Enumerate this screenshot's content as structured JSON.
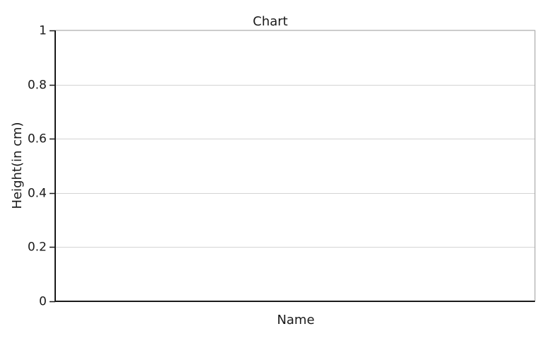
{
  "chart_data": {
    "type": "bar",
    "title": "Chart",
    "xlabel": "Name",
    "ylabel": "Height(in cm)",
    "categories": [],
    "series": [],
    "ylim": [
      0,
      1
    ],
    "yticks": [
      {
        "value": 0,
        "label": "0"
      },
      {
        "value": 0.2,
        "label": "0.2"
      },
      {
        "value": 0.4,
        "label": "0.4"
      },
      {
        "value": 0.6,
        "label": "0.6"
      },
      {
        "value": 0.8,
        "label": "0.8"
      },
      {
        "value": 1,
        "label": "1"
      }
    ],
    "grid": true,
    "legend": "none"
  },
  "colors": {
    "gridline": "#d4d4d4",
    "axis": "#1a1a1a",
    "frame": "#9a9a9a",
    "text": "#1a1a1a"
  }
}
